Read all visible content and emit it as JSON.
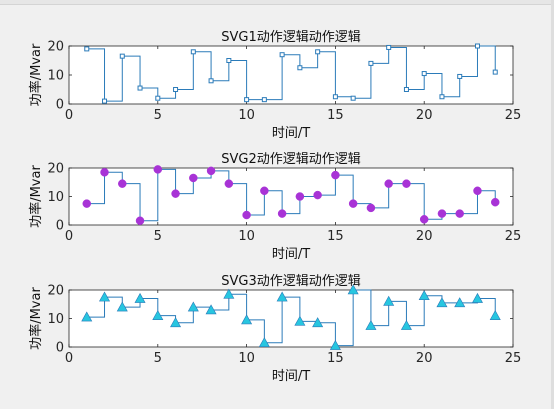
{
  "colors": {
    "figure_bg": "#f0f0f0",
    "axes_bg": "#ffffff",
    "axis_color": "#262626",
    "line": "#2b7bb9",
    "magenta": "#a833d6",
    "cyan": "#27c6e0"
  },
  "chart_data": [
    {
      "type": "line",
      "step": true,
      "marker": "square",
      "title": "SVG1动作逻辑动作逻辑",
      "xlabel": "时间/T",
      "ylabel": "功率/Mvar",
      "xlim": [
        0,
        25
      ],
      "ylim": [
        0,
        20
      ],
      "xticks": [
        "0",
        "5",
        "10",
        "15",
        "20",
        "25"
      ],
      "yticks": [
        "0",
        "10",
        "20"
      ],
      "series": [
        {
          "x": [
            1,
            2,
            3,
            4,
            5,
            6,
            7,
            8,
            9,
            10,
            11,
            12,
            13,
            14,
            15,
            16,
            17,
            18,
            19,
            20,
            21,
            22,
            23,
            24
          ],
          "values": [
            19,
            1,
            16.5,
            5.5,
            2,
            5,
            18,
            8,
            15,
            1.5,
            1.5,
            17,
            12.5,
            18,
            2.5,
            2,
            14,
            19.5,
            5,
            10.5,
            2.5,
            9.5,
            20,
            11
          ]
        }
      ]
    },
    {
      "type": "line",
      "step": true,
      "marker": "circle",
      "title": "SVG2动作逻辑动作逻辑",
      "xlabel": "时间/T",
      "ylabel": "功率/Mvar",
      "xlim": [
        0,
        25
      ],
      "ylim": [
        0,
        20
      ],
      "xticks": [
        "0",
        "5",
        "10",
        "15",
        "20",
        "25"
      ],
      "yticks": [
        "0",
        "10",
        "20"
      ],
      "series": [
        {
          "x": [
            1,
            2,
            3,
            4,
            5,
            6,
            7,
            8,
            9,
            10,
            11,
            12,
            13,
            14,
            15,
            16,
            17,
            18,
            19,
            20,
            21,
            22,
            23,
            24
          ],
          "values": [
            7.5,
            18.5,
            14.5,
            1.5,
            19.5,
            11,
            16.5,
            19,
            14.5,
            3.5,
            12,
            4,
            10,
            10.5,
            17.5,
            7.5,
            6,
            14.5,
            14.5,
            2,
            4,
            4,
            12,
            8
          ]
        }
      ]
    },
    {
      "type": "line",
      "step": true,
      "marker": "triangle",
      "title": "SVG3动作逻辑动作逻辑",
      "xlabel": "时间/T",
      "ylabel": "功率/Mvar",
      "xlim": [
        0,
        25
      ],
      "ylim": [
        0,
        20
      ],
      "xticks": [
        "0",
        "5",
        "10",
        "15",
        "20",
        "25"
      ],
      "yticks": [
        "0",
        "10",
        "20"
      ],
      "series": [
        {
          "x": [
            1,
            2,
            3,
            4,
            5,
            6,
            7,
            8,
            9,
            10,
            11,
            12,
            13,
            14,
            15,
            16,
            17,
            18,
            19,
            20,
            21,
            22,
            23,
            24
          ],
          "values": [
            10.5,
            17.5,
            14,
            17,
            11,
            8.5,
            14,
            13,
            18.5,
            9.5,
            1.5,
            17.5,
            9,
            8.5,
            0.5,
            20,
            7.5,
            16,
            7.5,
            18,
            15.5,
            15.5,
            17,
            11
          ]
        }
      ]
    }
  ]
}
